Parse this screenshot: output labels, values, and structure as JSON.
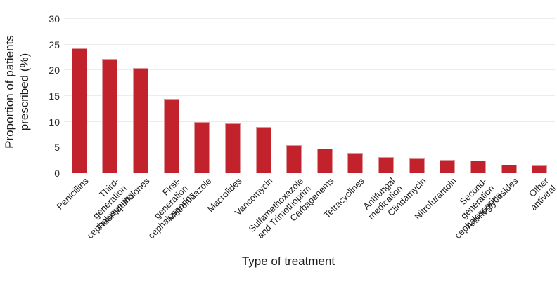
{
  "chart_data": {
    "type": "bar",
    "title": "",
    "xlabel": "Type of treatment",
    "ylabel": "Proportion of patients\nprescribed (%)",
    "ylim": [
      0,
      30
    ],
    "yticks": [
      0,
      5,
      10,
      15,
      20,
      25,
      30
    ],
    "grid": true,
    "legend": "none",
    "bar_color": "#c2222b",
    "bar_border_color": "#dd9598",
    "categories": [
      "Penicillins",
      "Third-generation\ncephalosporins",
      "Fluoroquinolones",
      "First-generation\ncephalosporins",
      "Metronidazole",
      "Macrolides",
      "Vancomycin",
      "Sulfamethoxazole\nand Trimethoprim",
      "Carbapenems",
      "Tetracyclines",
      "Antifungal\nmedication",
      "Clindamycin",
      "Nitrofurantoin",
      "Second-generation\ncephalosporins",
      "Aminoglycosides",
      "Other antiviral"
    ],
    "values": [
      24.3,
      22.2,
      20.5,
      14.4,
      10.0,
      9.7,
      9.0,
      5.4,
      4.8,
      4.0,
      3.1,
      2.9,
      2.6,
      2.4,
      1.6,
      1.5
    ]
  }
}
